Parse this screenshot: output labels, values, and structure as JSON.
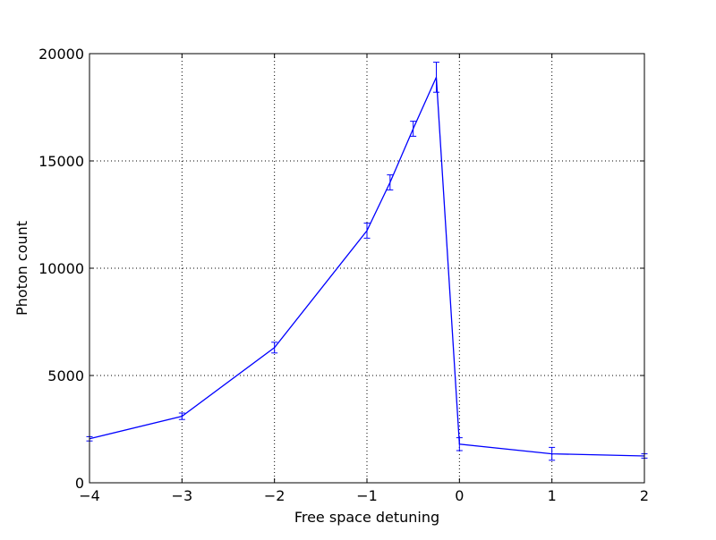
{
  "chart_data": {
    "type": "line",
    "title": "",
    "xlabel": "Free space detuning",
    "ylabel": "Photon count",
    "xlim": [
      -4,
      2
    ],
    "ylim": [
      0,
      20000
    ],
    "grid": true,
    "grid_style": "dotted",
    "legend": "none",
    "x_ticks": [
      -4,
      -3,
      -2,
      -1,
      0,
      1,
      2
    ],
    "x_tick_labels": [
      "−4",
      "−3",
      "−2",
      "−1",
      "0",
      "1",
      "2"
    ],
    "y_ticks": [
      0,
      5000,
      10000,
      15000,
      20000
    ],
    "y_tick_labels": [
      "0",
      "5000",
      "10000",
      "15000",
      "20000"
    ],
    "series": [
      {
        "color": "#0000ff",
        "x": [
          -4,
          -3,
          -2,
          -1,
          -0.75,
          -0.5,
          -0.25,
          0,
          1,
          2
        ],
        "y": [
          2050,
          3100,
          6300,
          11750,
          14000,
          16500,
          18900,
          1800,
          1350,
          1250
        ],
        "yerr": [
          100,
          150,
          250,
          350,
          350,
          350,
          700,
          300,
          300,
          100
        ]
      }
    ]
  }
}
